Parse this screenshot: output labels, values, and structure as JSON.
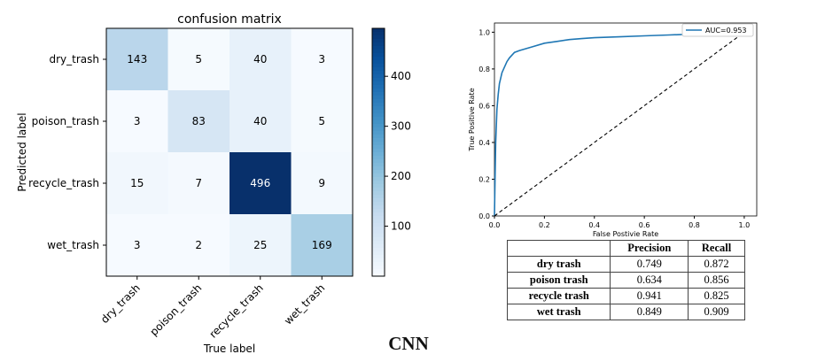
{
  "chart_data": [
    {
      "type": "heatmap",
      "title": "confusion matrix",
      "xlabel": "True label",
      "ylabel": "Predicted label",
      "x_categories": [
        "dry_trash",
        "poison_trash",
        "recycle_trash",
        "wet_trash"
      ],
      "y_categories": [
        "dry_trash",
        "poison_trash",
        "recycle_trash",
        "wet_trash"
      ],
      "values": [
        [
          143,
          5,
          40,
          3
        ],
        [
          3,
          83,
          40,
          5
        ],
        [
          15,
          7,
          496,
          9
        ],
        [
          3,
          2,
          25,
          169
        ]
      ],
      "colorbar": {
        "ticks": [
          100,
          200,
          300,
          400
        ],
        "min": 0,
        "max": 496,
        "colormap": "Blues"
      }
    },
    {
      "type": "line",
      "xlabel": "False Postivie Rate",
      "ylabel": "True Positive Rate",
      "xlim": [
        0,
        1.05
      ],
      "ylim": [
        0,
        1.05
      ],
      "xticks": [
        "0.0",
        "0.2",
        "0.4",
        "0.6",
        "0.8",
        "1.0"
      ],
      "yticks": [
        "0.0",
        "0.2",
        "0.4",
        "0.6",
        "0.8",
        "1.0"
      ],
      "legend": "top-right",
      "series": [
        {
          "name": "AUC=0.953",
          "color": "#1f77b4",
          "x": [
            0,
            0.002,
            0.005,
            0.01,
            0.015,
            0.02,
            0.03,
            0.04,
            0.05,
            0.06,
            0.08,
            0.1,
            0.15,
            0.2,
            0.25,
            0.3,
            0.35,
            0.4,
            0.5,
            0.6,
            0.7,
            0.8,
            0.85,
            0.9,
            1.0
          ],
          "y": [
            0,
            0.18,
            0.4,
            0.58,
            0.66,
            0.72,
            0.78,
            0.81,
            0.84,
            0.86,
            0.89,
            0.9,
            0.92,
            0.94,
            0.95,
            0.96,
            0.965,
            0.97,
            0.975,
            0.98,
            0.985,
            0.99,
            0.995,
            1.0,
            1.0
          ]
        },
        {
          "name": "",
          "style": "dashed",
          "color": "#000000",
          "x": [
            0,
            1
          ],
          "y": [
            0,
            1
          ]
        }
      ]
    },
    {
      "type": "table",
      "columns": [
        "",
        "Precision",
        "Recall"
      ],
      "rows": [
        [
          "dry trash",
          "0.749",
          "0.872"
        ],
        [
          "poison trash",
          "0.634",
          "0.856"
        ],
        [
          "recycle trash",
          "0.941",
          "0.825"
        ],
        [
          "wet trash",
          "0.849",
          "0.909"
        ]
      ]
    }
  ],
  "caption": "CNN"
}
